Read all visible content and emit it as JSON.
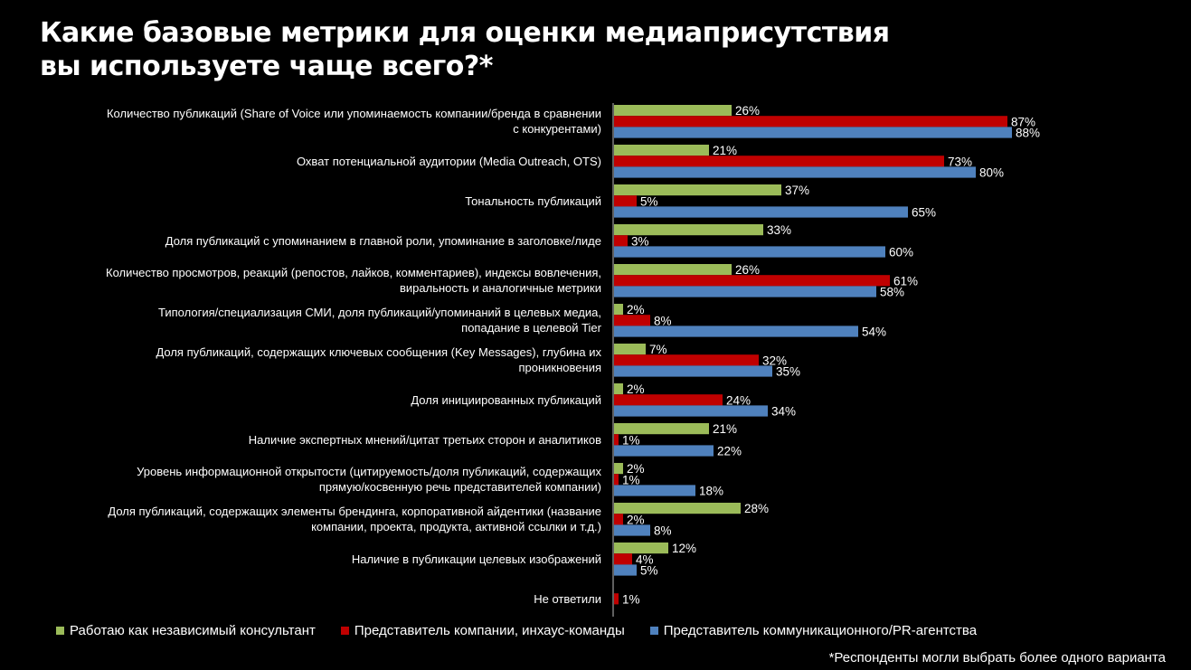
{
  "title_line1": "Какие базовые метрики для оценки медиаприсутствия",
  "title_line2": "вы используете чаще всего?*",
  "footnote": "*Респонденты могли выбрать более одного варианта",
  "colors": {
    "green": "#9bbb59",
    "red": "#c00000",
    "blue": "#4f81bd",
    "axis": "#bfbfbf"
  },
  "chart_data": {
    "type": "bar",
    "orientation": "horizontal",
    "categories": [
      [
        "Количество публикаций (Share of Voice или упоминаемость компании/бренда в сравнении",
        "с конкурентами)"
      ],
      [
        "Охват потенциальной аудитории (Media Outreach, OTS)"
      ],
      [
        "Тональность публикаций"
      ],
      [
        "Доля публикаций с упоминанием в главной роли, упоминание в заголовке/лиде"
      ],
      [
        "Количество просмотров, реакций (репостов, лайков, комментариев), индексы вовлечения,",
        "виральность и аналогичные метрики"
      ],
      [
        "Типология/специализация СМИ, доля публикаций/упоминаний в целевых медиа,",
        "попадание в целевой Tier"
      ],
      [
        "Доля публикаций, содержащих ключевых сообщения (Key Messages), глубина их",
        "проникновения"
      ],
      [
        "Доля инициированных публикаций"
      ],
      [
        "Наличие экспертных мнений/цитат третьих сторон и аналитиков"
      ],
      [
        "Уровень информационной открытости (цитируемость/доля публикаций, содержащих",
        "прямую/косвенную речь представителей компании)"
      ],
      [
        "Доля публикаций, содержащих элементы брендинга, корпоративной айдентики (название",
        "компании, проекта, продукта, активной ссылки и т.д.)"
      ],
      [
        "Наличие в публикации целевых изображений"
      ],
      [
        "Не ответили"
      ]
    ],
    "series": [
      {
        "name": "Работаю как независимый консультант",
        "color": "#9bbb59",
        "values": [
          26,
          21,
          37,
          33,
          26,
          2,
          7,
          2,
          21,
          2,
          28,
          12,
          null
        ]
      },
      {
        "name": "Представитель компании, инхаус-команды",
        "color": "#c00000",
        "values": [
          87,
          73,
          5,
          3,
          61,
          8,
          32,
          24,
          1,
          1,
          2,
          4,
          1
        ]
      },
      {
        "name": "Представитель коммуникационного/PR-агентства",
        "color": "#4f81bd",
        "values": [
          88,
          80,
          65,
          60,
          58,
          54,
          35,
          34,
          22,
          18,
          8,
          5,
          null
        ]
      }
    ],
    "value_suffix": "%",
    "xlim": [
      0,
      100
    ],
    "grid": false,
    "legend_position": "bottom"
  }
}
